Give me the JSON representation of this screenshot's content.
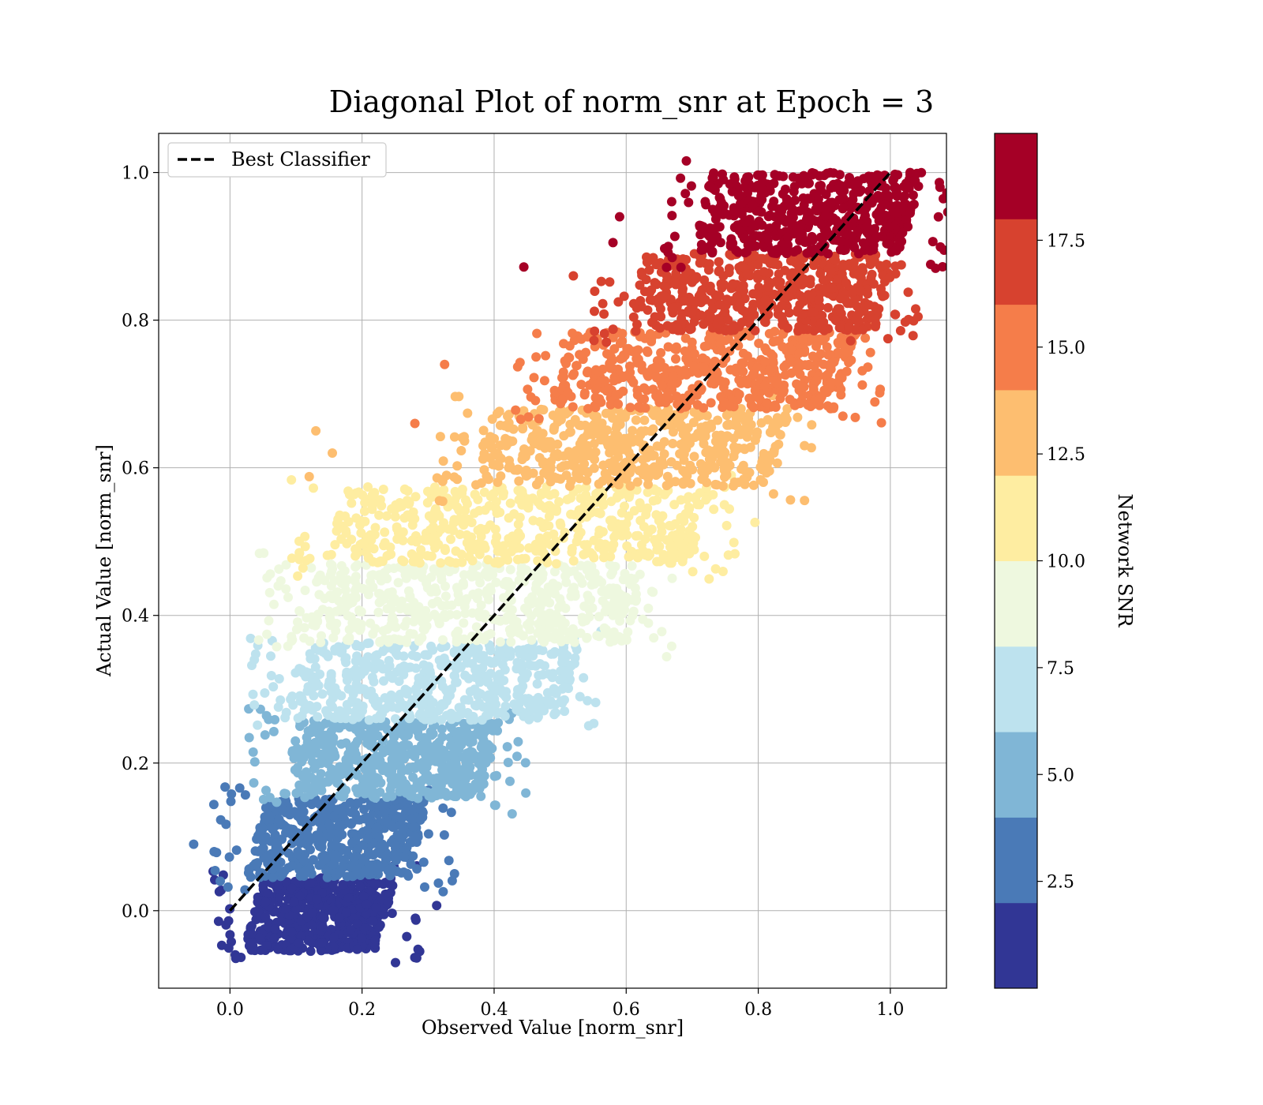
{
  "chart_data": {
    "type": "scatter",
    "title": "Diagonal Plot of norm_snr at Epoch = 3",
    "xlabel": "Observed Value [norm_snr]",
    "ylabel": "Actual Value [norm_snr]",
    "xlim": [
      -0.108,
      1.085
    ],
    "ylim": [
      -0.105,
      1.053
    ],
    "xticks": [
      0.0,
      0.2,
      0.4,
      0.6,
      0.8,
      1.0
    ],
    "xtick_labels": [
      "0.0",
      "0.2",
      "0.4",
      "0.6",
      "0.8",
      "1.0"
    ],
    "yticks": [
      0.0,
      0.2,
      0.4,
      0.6,
      0.8,
      1.0
    ],
    "ytick_labels": [
      "0.0",
      "0.2",
      "0.4",
      "0.6",
      "0.8",
      "1.0"
    ],
    "grid": true,
    "legend": {
      "position": "top-left",
      "entries": [
        "Best Classifier"
      ]
    },
    "reference_line": {
      "name": "Best Classifier",
      "style": "dashed",
      "color": "#000000",
      "x": [
        0.0,
        1.0
      ],
      "y": [
        0.0,
        1.0
      ]
    },
    "bands": [
      {
        "color": "#313695",
        "y_range": [
          -0.055,
          0.045
        ],
        "x_range": [
          0.02,
          0.22
        ]
      },
      {
        "color": "#4a7ab7",
        "y_range": [
          0.045,
          0.152
        ],
        "x_range": [
          0.025,
          0.27
        ]
      },
      {
        "color": "#80b6d6",
        "y_range": [
          0.152,
          0.258
        ],
        "x_range": [
          0.075,
          0.38
        ]
      },
      {
        "color": "#bde2ee",
        "y_range": [
          0.258,
          0.363
        ],
        "x_range": [
          0.08,
          0.5
        ]
      },
      {
        "color": "#eef8df",
        "y_range": [
          0.363,
          0.47
        ],
        "x_range": [
          0.09,
          0.6
        ]
      },
      {
        "color": "#feeda1",
        "y_range": [
          0.47,
          0.575
        ],
        "x_range": [
          0.14,
          0.7
        ]
      },
      {
        "color": "#fdbe70",
        "y_range": [
          0.575,
          0.68
        ],
        "x_range": [
          0.36,
          0.82
        ]
      },
      {
        "color": "#f57d4a",
        "y_range": [
          0.68,
          0.785
        ],
        "x_range": [
          0.48,
          0.92
        ]
      },
      {
        "color": "#d7422f",
        "y_range": [
          0.785,
          0.89
        ],
        "x_range": [
          0.6,
          0.98
        ]
      },
      {
        "color": "#a50026",
        "y_range": [
          0.89,
          1.0
        ],
        "x_range": [
          0.7,
          1.02
        ]
      }
    ],
    "outliers": [
      [
        -0.055,
        0.09
      ],
      [
        -0.024,
        0.08
      ],
      [
        -0.003,
        0.032
      ],
      [
        0.01,
        0.082
      ],
      [
        0.34,
        0.05
      ],
      [
        0.313,
        0.007
      ],
      [
        0.27,
        0.047
      ],
      [
        0.22,
        -0.04
      ],
      [
        0.445,
        0.872
      ],
      [
        0.325,
        0.74
      ],
      [
        0.13,
        0.65
      ],
      [
        0.155,
        0.62
      ],
      [
        0.12,
        0.588
      ],
      [
        0.105,
        0.485
      ],
      [
        0.795,
        0.526
      ],
      [
        0.87,
        0.63
      ],
      [
        0.9,
        0.705
      ],
      [
        0.94,
        0.772
      ],
      [
        0.59,
        0.94
      ],
      [
        0.58,
        0.905
      ],
      [
        1.03,
        0.945
      ],
      [
        1.03,
        1.0
      ],
      [
        0.58,
        0.4
      ],
      [
        0.42,
        0.222
      ],
      [
        0.53,
        0.29
      ],
      [
        0.38,
        0.155
      ],
      [
        0.28,
        0.66
      ],
      [
        0.52,
        0.86
      ]
    ],
    "colorbar": {
      "label": "Network SNR",
      "ticks": [
        2.5,
        5.0,
        7.5,
        10.0,
        12.5,
        15.0,
        17.5
      ],
      "tick_labels": [
        "2.5",
        "5.0",
        "7.5",
        "10.0",
        "12.5",
        "15.0",
        "17.5"
      ],
      "range": [
        0.0,
        20.0
      ],
      "colors": [
        "#313695",
        "#4a7ab7",
        "#80b6d6",
        "#bde2ee",
        "#eef8df",
        "#feeda1",
        "#fdbe70",
        "#f57d4a",
        "#d7422f",
        "#a50026"
      ]
    }
  }
}
